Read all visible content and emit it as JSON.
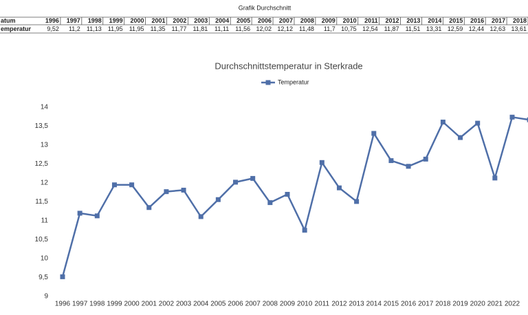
{
  "table": {
    "title": "Grafik Durchschnitt",
    "header": [
      "atum",
      "1996",
      "1997",
      "1998",
      "1999",
      "2000",
      "2001",
      "2002",
      "2003",
      "2004",
      "2005",
      "2006",
      "2007",
      "2008",
      "2009",
      "2010",
      "2011",
      "2012",
      "2013",
      "2014",
      "2015",
      "2016",
      "2017",
      "2018"
    ],
    "rows": [
      [
        "emperatur",
        "9,52",
        "11,2",
        "11,13",
        "11,95",
        "11,95",
        "11,35",
        "11,77",
        "11,81",
        "11,11",
        "11,56",
        "12,02",
        "12,12",
        "11,48",
        "11,7",
        "10,75",
        "12,54",
        "11,87",
        "11,51",
        "13,31",
        "12,59",
        "12,44",
        "12,63",
        "13,61"
      ]
    ]
  },
  "chart_data": {
    "type": "line",
    "title": "Durchschnittstemperatur in Sterkrade",
    "categories": [
      "1996",
      "1997",
      "1998",
      "1999",
      "2000",
      "2001",
      "2002",
      "2003",
      "2004",
      "2005",
      "2006",
      "2007",
      "2008",
      "2009",
      "2010",
      "2011",
      "2012",
      "2013",
      "2014",
      "2015",
      "2016",
      "2017",
      "2018",
      "2019",
      "2020",
      "2021",
      "2022",
      null
    ],
    "series": [
      {
        "name": "Temperatur",
        "color": "#4f6fa8",
        "values": [
          9.52,
          11.2,
          11.13,
          11.95,
          11.95,
          11.35,
          11.77,
          11.81,
          11.11,
          11.56,
          12.02,
          12.12,
          11.48,
          11.7,
          10.75,
          12.54,
          11.87,
          11.51,
          13.31,
          12.59,
          12.44,
          12.63,
          13.61,
          13.2,
          13.58,
          12.13,
          13.74,
          13.67
        ]
      }
    ],
    "ylim": [
      9,
      14
    ],
    "yticks": [
      9,
      {
        "value": 9.5,
        "label": "9,5"
      },
      10,
      {
        "value": 10.5,
        "label": "10,5"
      },
      11,
      {
        "value": 11.5,
        "label": "11,5"
      },
      12,
      {
        "value": 12.5,
        "label": "12,5"
      },
      13,
      {
        "value": 13.5,
        "label": "13,5"
      },
      14
    ],
    "legend": "top",
    "grid": false
  }
}
